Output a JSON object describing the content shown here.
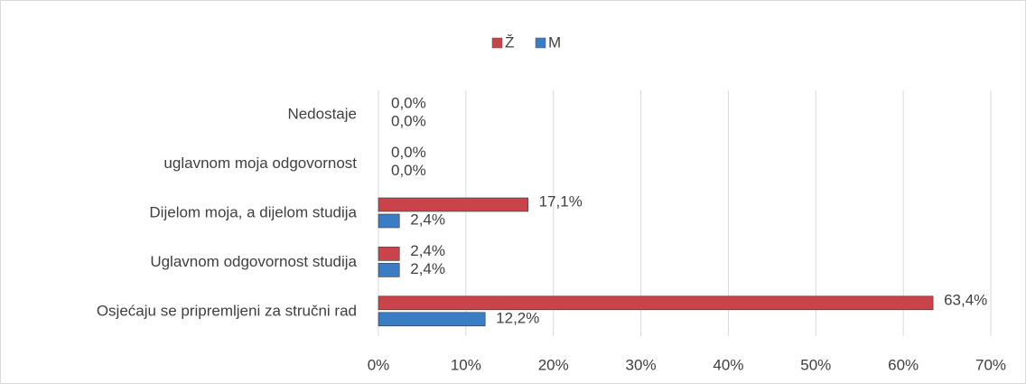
{
  "chart_data": {
    "type": "hbar",
    "categories": [
      "Nedostaje",
      "uglavnom moja odgovornost",
      "Dijelom moja, a dijelom studija",
      "Uglavnom odgovornost studija",
      "Osjećaju se pripremljeni za stručni rad"
    ],
    "series": [
      {
        "name": "Ž",
        "color": "#c9444a",
        "values": [
          0,
          0,
          17.1,
          2.4,
          63.4
        ],
        "value_labels": [
          "0,0%",
          "0,0%",
          "17,1%",
          "2,4%",
          "63,4%"
        ]
      },
      {
        "name": "M",
        "color": "#3b7dc4",
        "values": [
          0,
          0,
          2.4,
          2.4,
          12.2
        ],
        "value_labels": [
          "0,0%",
          "0,0%",
          "2,4%",
          "2,4%",
          "12,2%"
        ]
      }
    ],
    "xlim": [
      0,
      70
    ],
    "xticks": [
      {
        "value": 0,
        "label": "0%"
      },
      {
        "value": 10,
        "label": "10%"
      },
      {
        "value": 20,
        "label": "20%"
      },
      {
        "value": 30,
        "label": "30%"
      },
      {
        "value": 40,
        "label": "40%"
      },
      {
        "value": 50,
        "label": "50%"
      },
      {
        "value": 60,
        "label": "60%"
      },
      {
        "value": 70,
        "label": "70%"
      }
    ],
    "grid": true,
    "legend": "top"
  }
}
